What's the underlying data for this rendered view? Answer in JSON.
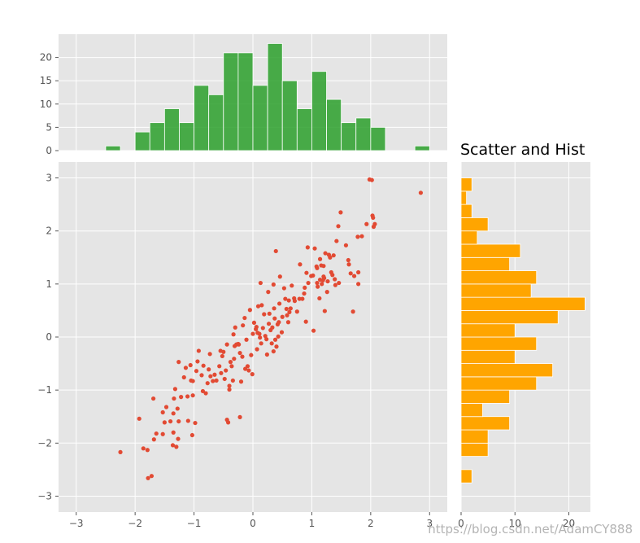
{
  "chart_data": [
    {
      "type": "scatter",
      "xlim": [
        -3.3,
        3.3
      ],
      "ylim": [
        -3.3,
        3.3
      ],
      "xticks": [
        "−3",
        "−2",
        "−1",
        "0",
        "1",
        "2",
        "3"
      ],
      "yticks": [
        "−3",
        "−2",
        "−1",
        "0",
        "1",
        "2",
        "3"
      ],
      "grid": true,
      "color": "#E24A33",
      "points": [
        [
          -2.25,
          -2.17
        ],
        [
          -1.93,
          -1.54
        ],
        [
          -1.86,
          -2.1
        ],
        [
          -1.79,
          -2.13
        ],
        [
          -1.78,
          -2.66
        ],
        [
          -1.72,
          -2.62
        ],
        [
          -1.69,
          -1.16
        ],
        [
          -1.68,
          -1.93
        ],
        [
          -1.64,
          -1.82
        ],
        [
          -1.53,
          -1.83
        ],
        [
          -1.53,
          -1.42
        ],
        [
          -1.5,
          -1.61
        ],
        [
          -1.47,
          -1.32
        ],
        [
          -1.4,
          -1.59
        ],
        [
          -1.36,
          -2.04
        ],
        [
          -1.35,
          -1.8
        ],
        [
          -1.35,
          -1.44
        ],
        [
          -1.34,
          -1.16
        ],
        [
          -1.32,
          -0.98
        ],
        [
          -1.3,
          -2.07
        ],
        [
          -1.28,
          -1.35
        ],
        [
          -1.27,
          -1.92
        ],
        [
          -1.26,
          -1.59
        ],
        [
          -1.26,
          -0.47
        ],
        [
          -1.22,
          -1.13
        ],
        [
          -1.17,
          -0.76
        ],
        [
          -1.14,
          -0.58
        ],
        [
          -1.11,
          -1.12
        ],
        [
          -1.1,
          -1.58
        ],
        [
          -1.06,
          -0.53
        ],
        [
          -1.05,
          -0.82
        ],
        [
          -1.02,
          -0.83
        ],
        [
          -1.03,
          -1.85
        ],
        [
          -1.02,
          -1.1
        ],
        [
          -0.98,
          -1.62
        ],
        [
          -0.96,
          -0.64
        ],
        [
          -0.94,
          -0.46
        ],
        [
          -0.92,
          -0.26
        ],
        [
          -0.87,
          -0.72
        ],
        [
          -0.85,
          -1.02
        ],
        [
          -0.84,
          -0.54
        ],
        [
          -0.8,
          -1.06
        ],
        [
          -0.77,
          -0.87
        ],
        [
          -0.75,
          -0.61
        ],
        [
          -0.73,
          -0.32
        ],
        [
          -0.72,
          -0.74
        ],
        [
          -0.68,
          -0.83
        ],
        [
          -0.65,
          -0.71
        ],
        [
          -0.62,
          -0.82
        ],
        [
          -0.57,
          -0.55
        ],
        [
          -0.55,
          -0.26
        ],
        [
          -0.54,
          -0.68
        ],
        [
          -0.52,
          -0.36
        ],
        [
          -0.5,
          -0.28
        ],
        [
          -0.48,
          -0.79
        ],
        [
          -0.46,
          -0.63
        ],
        [
          -0.44,
          -0.14
        ],
        [
          -0.44,
          -1.56
        ],
        [
          -0.42,
          -1.61
        ],
        [
          -0.4,
          -0.92
        ],
        [
          -0.4,
          -0.99
        ],
        [
          -0.38,
          -0.47
        ],
        [
          -0.36,
          -0.55
        ],
        [
          -0.34,
          -0.82
        ],
        [
          -0.33,
          0.05
        ],
        [
          -0.32,
          -0.41
        ],
        [
          -0.31,
          -0.17
        ],
        [
          -0.3,
          0.18
        ],
        [
          -0.28,
          -0.14
        ],
        [
          -0.25,
          -0.13
        ],
        [
          -0.24,
          -0.14
        ],
        [
          -0.22,
          -0.3
        ],
        [
          -0.22,
          -1.51
        ],
        [
          -0.2,
          -0.84
        ],
        [
          -0.18,
          -0.37
        ],
        [
          -0.17,
          0.22
        ],
        [
          -0.14,
          0.36
        ],
        [
          -0.13,
          -0.6
        ],
        [
          -0.11,
          -0.05
        ],
        [
          -0.09,
          -0.55
        ],
        [
          -0.07,
          -0.63
        ],
        [
          -0.05,
          0.51
        ],
        [
          -0.03,
          -0.34
        ],
        [
          -0.01,
          -0.7
        ],
        [
          0.0,
          0.06
        ],
        [
          0.02,
          0.27
        ],
        [
          0.05,
          0.15
        ],
        [
          0.06,
          0.19
        ],
        [
          0.07,
          -0.23
        ],
        [
          0.08,
          0.08
        ],
        [
          0.09,
          0.58
        ],
        [
          0.11,
          0.06
        ],
        [
          0.12,
          -0.01
        ],
        [
          0.13,
          1.02
        ],
        [
          0.14,
          -0.12
        ],
        [
          0.15,
          0.6
        ],
        [
          0.17,
          0.17
        ],
        [
          0.19,
          0.43
        ],
        [
          0.21,
          0.02
        ],
        [
          0.23,
          -0.04
        ],
        [
          0.24,
          -0.33
        ],
        [
          0.26,
          0.85
        ],
        [
          0.27,
          0.25
        ],
        [
          0.28,
          0.44
        ],
        [
          0.3,
          0.13
        ],
        [
          0.32,
          -0.12
        ],
        [
          0.33,
          0.18
        ],
        [
          0.35,
          -0.27
        ],
        [
          0.35,
          0.99
        ],
        [
          0.36,
          0.54
        ],
        [
          0.37,
          0.35
        ],
        [
          0.38,
          -0.05
        ],
        [
          0.39,
          1.62
        ],
        [
          0.4,
          -0.18
        ],
        [
          0.42,
          0.24
        ],
        [
          0.43,
          0.01
        ],
        [
          0.44,
          0.28
        ],
        [
          0.45,
          0.63
        ],
        [
          0.46,
          1.14
        ],
        [
          0.49,
          0.09
        ],
        [
          0.5,
          0.38
        ],
        [
          0.53,
          0.92
        ],
        [
          0.55,
          0.72
        ],
        [
          0.57,
          0.53
        ],
        [
          0.58,
          0.41
        ],
        [
          0.6,
          0.28
        ],
        [
          0.61,
          0.69
        ],
        [
          0.62,
          0.47
        ],
        [
          0.64,
          0.54
        ],
        [
          0.66,
          0.97
        ],
        [
          0.7,
          0.73
        ],
        [
          0.71,
          0.68
        ],
        [
          0.75,
          0.48
        ],
        [
          0.79,
          0.72
        ],
        [
          0.8,
          1.37
        ],
        [
          0.84,
          0.72
        ],
        [
          0.87,
          0.82
        ],
        [
          0.88,
          0.93
        ],
        [
          0.9,
          0.29
        ],
        [
          0.91,
          1.21
        ],
        [
          0.93,
          1.69
        ],
        [
          0.94,
          1.02
        ],
        [
          0.99,
          1.15
        ],
        [
          1.02,
          1.16
        ],
        [
          1.03,
          0.12
        ],
        [
          1.05,
          1.67
        ],
        [
          1.08,
          1.33
        ],
        [
          1.09,
          1.02
        ],
        [
          1.09,
          1.3
        ],
        [
          1.1,
          0.95
        ],
        [
          1.13,
          0.73
        ],
        [
          1.14,
          1.08
        ],
        [
          1.14,
          1.47
        ],
        [
          1.16,
          1.35
        ],
        [
          1.17,
          1.0
        ],
        [
          1.19,
          1.07
        ],
        [
          1.2,
          1.14
        ],
        [
          1.2,
          1.34
        ],
        [
          1.21,
          1.11
        ],
        [
          1.22,
          0.49
        ],
        [
          1.23,
          1.58
        ],
        [
          1.26,
          0.85
        ],
        [
          1.27,
          1.05
        ],
        [
          1.29,
          1.55
        ],
        [
          1.31,
          1.5
        ],
        [
          1.33,
          1.22
        ],
        [
          1.35,
          1.17
        ],
        [
          1.37,
          1.54
        ],
        [
          1.39,
          1.09
        ],
        [
          1.4,
          0.98
        ],
        [
          1.42,
          1.81
        ],
        [
          1.45,
          2.09
        ],
        [
          1.46,
          1.02
        ],
        [
          1.49,
          2.35
        ],
        [
          1.58,
          1.73
        ],
        [
          1.62,
          1.45
        ],
        [
          1.63,
          1.37
        ],
        [
          1.66,
          1.2
        ],
        [
          1.7,
          0.48
        ],
        [
          1.72,
          1.15
        ],
        [
          1.78,
          1.89
        ],
        [
          1.79,
          1.22
        ],
        [
          1.79,
          1.0
        ],
        [
          1.85,
          1.9
        ],
        [
          1.93,
          2.13
        ],
        [
          1.98,
          2.97
        ],
        [
          2.02,
          2.96
        ],
        [
          2.03,
          2.29
        ],
        [
          2.04,
          2.25
        ],
        [
          2.05,
          2.08
        ],
        [
          2.07,
          2.13
        ],
        [
          2.85,
          2.72
        ]
      ]
    },
    {
      "type": "bar",
      "orientation": "vertical",
      "title": "",
      "bin_edges": [
        -2.5,
        -2.25,
        -2.0,
        -1.75,
        -1.5,
        -1.25,
        -1.0,
        -0.75,
        -0.5,
        -0.25,
        0.0,
        0.25,
        0.5,
        0.75,
        1.0,
        1.25,
        1.5,
        1.75,
        2.0,
        2.25,
        2.5,
        2.75,
        3.0
      ],
      "values": [
        1,
        0,
        4,
        6,
        9,
        6,
        14,
        12,
        21,
        21,
        14,
        23,
        15,
        9,
        17,
        11,
        6,
        7,
        5,
        0,
        0,
        1
      ],
      "xlim": [
        -3.3,
        3.3
      ],
      "ylim": [
        0,
        25
      ],
      "yticks": [
        "0",
        "5",
        "10",
        "15",
        "20"
      ],
      "grid": true,
      "color": "#2ca02c"
    },
    {
      "type": "bar",
      "orientation": "horizontal",
      "title": "Scatter and Hist",
      "bin_edges": [
        -2.75,
        -2.5,
        -2.25,
        -2.0,
        -1.75,
        -1.5,
        -1.25,
        -1.0,
        -0.75,
        -0.5,
        -0.25,
        0.0,
        0.25,
        0.5,
        0.75,
        1.0,
        1.25,
        1.5,
        1.75,
        2.0,
        2.25,
        2.5,
        2.75,
        3.0
      ],
      "values": [
        2,
        0,
        5,
        5,
        9,
        4,
        9,
        14,
        17,
        10,
        14,
        10,
        18,
        23,
        13,
        14,
        9,
        11,
        3,
        5,
        2,
        1,
        2
      ],
      "xlim": [
        0,
        24
      ],
      "ylim": [
        -3.3,
        3.3
      ],
      "xticks": [
        "0",
        "10",
        "20"
      ],
      "grid": true,
      "color": "#ffa500"
    }
  ],
  "watermark": "https://blog.csdn.net/AdamCY888"
}
